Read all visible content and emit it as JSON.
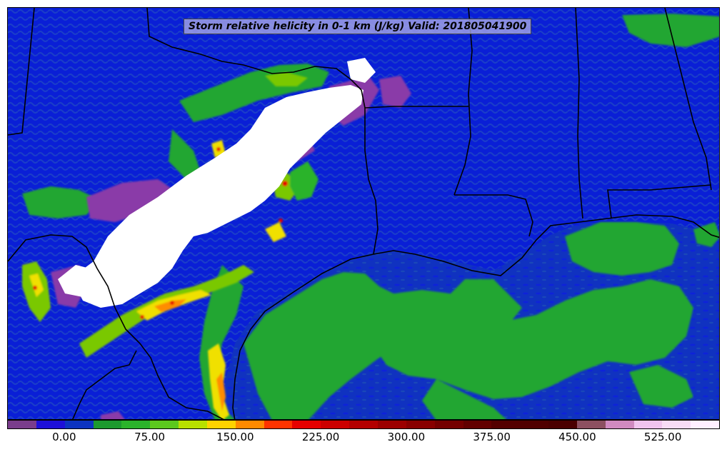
{
  "title": "Storm relative helicity in 0-1 km (J/kg) Valid: 201805041900",
  "colors": {
    "ocean_base": "#1032c0",
    "land_base": "#0a1fd6",
    "green": "#22a632",
    "light_green": "#7ac800",
    "yellow": "#f0e000",
    "orange": "#ff8c00",
    "red": "#e40000",
    "purple": "#8a3aa8",
    "white": "#ffffff",
    "border": "#000000"
  },
  "colorbar": {
    "colors": [
      "#7a3d8c",
      "#1d0fd8",
      "#0c33c0",
      "#1c9a2e",
      "#2bb32b",
      "#5cc81e",
      "#b8e000",
      "#ffd200",
      "#ff8a00",
      "#ff3300",
      "#e60000",
      "#cc0000",
      "#b40000",
      "#9c0000",
      "#880000",
      "#740000",
      "#620000",
      "#540000",
      "#500000",
      "#4a0000",
      "#8c5060",
      "#d08ac0",
      "#f0c4ee",
      "#f8dcf6",
      "#fff0ff"
    ],
    "tick_labels": [
      "0.00",
      "75.00",
      "150.00",
      "225.00",
      "300.00",
      "375.00",
      "450.00",
      "525.00"
    ],
    "tick_positions": [
      2,
      5,
      8,
      11,
      14,
      17,
      20,
      23
    ]
  }
}
